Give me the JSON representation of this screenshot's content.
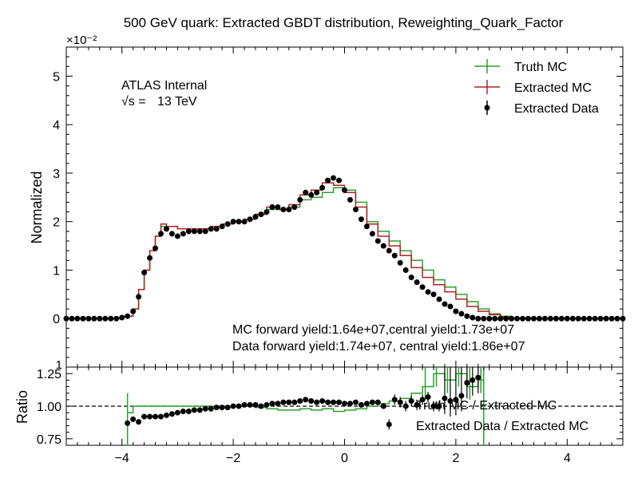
{
  "figure": {
    "title": "500 GeV quark: Extracted GBDT distribution, Reweighting_Quark_Factor",
    "atlas_label": "ATLAS Internal",
    "energy_prefix": "√s =",
    "energy_value": "13 TeV",
    "yield_mc": "MC forward yield:1.64e+07,central yield:1.73e+07",
    "yield_data": "Data forward yield:1.74e+07, central yield:1.86e+07",
    "colors": {
      "truth": "#2ca02c",
      "extracted": "#b22222",
      "data": "#000000"
    }
  },
  "chart_data": [
    {
      "type": "line",
      "title": "500 GeV quark: Extracted GBDT distribution, Reweighting_Quark_Factor",
      "ylabel": "Normalized",
      "xlabel": "",
      "exponent_label": "×10⁻²",
      "xlim": [
        -5,
        5
      ],
      "ylim": [
        -1,
        5.6
      ],
      "x_ticks": [
        -4,
        -2,
        0,
        2,
        4
      ],
      "x_tick_labels": [
        "−4",
        "−2",
        "0",
        "2",
        "4"
      ],
      "y_ticks": [
        0,
        1,
        2,
        3,
        4,
        5
      ],
      "y_tick_labels": [
        "0",
        "1",
        "2",
        "3",
        "4",
        "5"
      ],
      "y_bottom_label": "1",
      "legend_position": "top-right",
      "bin_edges": [
        -5.0,
        -4.8,
        -4.6,
        -4.4,
        -4.2,
        -4.0,
        -3.8,
        -3.7,
        -3.6,
        -3.5,
        -3.4,
        -3.3,
        -3.2,
        -3.1,
        -3.0,
        -2.8,
        -2.6,
        -2.4,
        -2.2,
        -2.0,
        -1.8,
        -1.6,
        -1.4,
        -1.2,
        -1.0,
        -0.8,
        -0.6,
        -0.4,
        -0.2,
        0.0,
        0.2,
        0.4,
        0.6,
        0.8,
        1.0,
        1.2,
        1.4,
        1.6,
        1.8,
        2.0,
        2.2,
        2.4,
        2.6,
        2.8,
        3.0,
        3.4,
        3.8,
        4.2,
        4.6,
        5.0
      ],
      "series": [
        {
          "name": "Truth MC",
          "style": "step",
          "values": [
            0,
            0,
            0,
            0,
            0,
            0.05,
            0.2,
            0.6,
            1.0,
            1.4,
            1.7,
            1.9,
            1.9,
            1.9,
            1.85,
            1.85,
            1.85,
            1.9,
            1.95,
            2.0,
            2.05,
            2.15,
            2.25,
            2.25,
            2.3,
            2.45,
            2.5,
            2.6,
            2.7,
            2.65,
            2.4,
            2.0,
            1.8,
            1.6,
            1.4,
            1.2,
            1.0,
            0.8,
            0.65,
            0.5,
            0.35,
            0.2,
            0.1,
            0.05,
            0.01,
            0,
            0,
            0,
            0
          ]
        },
        {
          "name": "Extracted MC",
          "style": "step",
          "values": [
            0,
            0,
            0,
            0,
            0,
            0.05,
            0.2,
            0.6,
            1.0,
            1.4,
            1.7,
            1.95,
            1.9,
            1.9,
            1.85,
            1.85,
            1.85,
            1.9,
            1.95,
            2.0,
            2.05,
            2.15,
            2.3,
            2.25,
            2.35,
            2.55,
            2.65,
            2.8,
            2.75,
            2.6,
            2.3,
            1.95,
            1.7,
            1.5,
            1.3,
            1.05,
            0.85,
            0.7,
            0.55,
            0.4,
            0.25,
            0.15,
            0.08,
            0.03,
            0.01,
            0,
            0,
            0,
            0
          ]
        },
        {
          "name": "Extracted Data",
          "style": "points",
          "x": [
            -5.0,
            -4.9,
            -4.8,
            -4.7,
            -4.6,
            -4.5,
            -4.4,
            -4.3,
            -4.2,
            -4.1,
            -4.0,
            -3.9,
            -3.8,
            -3.7,
            -3.6,
            -3.5,
            -3.4,
            -3.3,
            -3.2,
            -3.1,
            -3.0,
            -2.9,
            -2.8,
            -2.7,
            -2.6,
            -2.5,
            -2.4,
            -2.3,
            -2.2,
            -2.1,
            -2.0,
            -1.9,
            -1.8,
            -1.7,
            -1.6,
            -1.5,
            -1.4,
            -1.3,
            -1.2,
            -1.1,
            -1.0,
            -0.9,
            -0.8,
            -0.7,
            -0.6,
            -0.5,
            -0.4,
            -0.3,
            -0.2,
            -0.1,
            0.0,
            0.1,
            0.2,
            0.3,
            0.4,
            0.5,
            0.6,
            0.7,
            0.8,
            0.9,
            1.0,
            1.1,
            1.2,
            1.3,
            1.4,
            1.5,
            1.6,
            1.7,
            1.8,
            1.9,
            2.0,
            2.1,
            2.2,
            2.3,
            2.4,
            2.5,
            2.6,
            2.7,
            2.8,
            2.9,
            3.0,
            3.1,
            3.2,
            3.3,
            3.4,
            3.5,
            3.6,
            3.7,
            3.8,
            3.9,
            4.0,
            4.1,
            4.2,
            4.3,
            4.4,
            4.5,
            4.6,
            4.7,
            4.8,
            4.9,
            5.0
          ],
          "values": [
            0,
            0,
            0,
            0,
            0,
            0,
            0,
            0,
            0,
            0,
            0.02,
            0.05,
            0.15,
            0.45,
            0.95,
            1.25,
            1.45,
            1.75,
            1.85,
            1.75,
            1.7,
            1.75,
            1.8,
            1.8,
            1.8,
            1.8,
            1.85,
            1.85,
            1.9,
            1.95,
            2.0,
            2.0,
            2.0,
            2.05,
            2.1,
            2.15,
            2.2,
            2.3,
            2.3,
            2.25,
            2.25,
            2.3,
            2.45,
            2.6,
            2.55,
            2.6,
            2.7,
            2.85,
            2.9,
            2.85,
            2.65,
            2.45,
            2.25,
            2.05,
            1.9,
            1.75,
            1.6,
            1.5,
            1.4,
            1.3,
            1.15,
            1.0,
            0.85,
            0.75,
            0.65,
            0.55,
            0.5,
            0.4,
            0.3,
            0.25,
            0.15,
            0.1,
            0.05,
            0.02,
            0,
            0,
            0,
            0,
            0,
            0,
            0,
            0,
            0,
            0,
            0,
            0,
            0,
            0,
            0,
            0,
            0,
            0,
            0,
            0,
            0,
            0,
            0,
            0,
            0,
            0,
            0
          ]
        }
      ]
    },
    {
      "type": "line",
      "ylabel": "Ratio",
      "xlabel": "",
      "xlim": [
        -5,
        5
      ],
      "ylim": [
        0.7,
        1.3
      ],
      "y_ticks": [
        0.75,
        1.0,
        1.25
      ],
      "y_tick_labels": [
        "0.75",
        "1.00",
        "1.25"
      ],
      "x_ticks": [
        -4,
        -2,
        0,
        2,
        4
      ],
      "x_tick_labels": [
        "−4",
        "−2",
        "0",
        "2",
        "4"
      ],
      "reference_line": 1.0,
      "series": [
        {
          "name": "Truth MC / Extracted MC",
          "style": "step",
          "x": [
            -3.9,
            -3.8,
            -3.7,
            -3.6,
            -3.4,
            -3.2,
            -3.0,
            -2.8,
            -2.6,
            -2.4,
            -2.2,
            -2.0,
            -1.8,
            -1.6,
            -1.4,
            -1.2,
            -1.0,
            -0.8,
            -0.6,
            -0.4,
            -0.2,
            0.0,
            0.2,
            0.4,
            0.6,
            0.8,
            1.0,
            1.2,
            1.4,
            1.6,
            1.8,
            2.0,
            2.2,
            2.4
          ],
          "values": [
            0.95,
            1.0,
            1.0,
            1.0,
            1.0,
            1.0,
            1.0,
            1.0,
            1.0,
            1.0,
            1.0,
            1.0,
            1.0,
            0.99,
            0.98,
            0.97,
            0.97,
            0.98,
            0.97,
            0.98,
            0.96,
            0.97,
            0.98,
            1.0,
            1.02,
            1.04,
            1.06,
            1.1,
            1.15,
            1.25,
            1.2,
            1.25,
            1.15,
            1.2
          ]
        },
        {
          "name": "Extracted Data / Extracted MC",
          "style": "points",
          "x": [
            -3.9,
            -3.8,
            -3.7,
            -3.6,
            -3.5,
            -3.4,
            -3.3,
            -3.2,
            -3.1,
            -3.0,
            -2.9,
            -2.8,
            -2.7,
            -2.6,
            -2.5,
            -2.4,
            -2.3,
            -2.2,
            -2.1,
            -2.0,
            -1.9,
            -1.8,
            -1.7,
            -1.6,
            -1.5,
            -1.4,
            -1.3,
            -1.2,
            -1.1,
            -1.0,
            -0.9,
            -0.8,
            -0.7,
            -0.6,
            -0.5,
            -0.4,
            -0.3,
            -0.2,
            -0.1,
            0.0,
            0.1,
            0.2,
            0.3,
            0.4,
            0.5,
            0.6,
            0.7,
            0.8,
            0.9,
            1.0,
            1.1,
            1.2,
            1.3,
            1.4,
            1.5,
            1.6,
            1.7,
            1.8,
            1.9,
            2.0,
            2.1,
            2.2,
            2.3,
            2.4,
            2.5,
            2.6,
            2.7
          ],
          "values": [
            0.87,
            0.9,
            0.88,
            0.92,
            0.92,
            0.92,
            0.92,
            0.93,
            0.94,
            0.95,
            0.96,
            0.96,
            0.97,
            0.97,
            0.98,
            0.98,
            0.99,
            0.99,
            0.99,
            1.0,
            1.0,
            1.01,
            1.01,
            1.01,
            1.0,
            1.01,
            1.02,
            1.02,
            1.03,
            1.03,
            1.03,
            1.04,
            1.05,
            1.04,
            1.03,
            1.04,
            1.03,
            1.03,
            1.03,
            1.02,
            1.02,
            1.03,
            1.01,
            1.02,
            1.03,
            1.03,
            1.0,
            0.86,
            1.05,
            1.03,
            1.0,
            1.04,
            1.01,
            1.05,
            1.07,
            1.0,
            1.0,
            1.06,
            1.04,
            1.05,
            1.08,
            1.18,
            1.2,
            1.22,
            1.4,
            1.45,
            1.42
          ]
        }
      ]
    }
  ]
}
